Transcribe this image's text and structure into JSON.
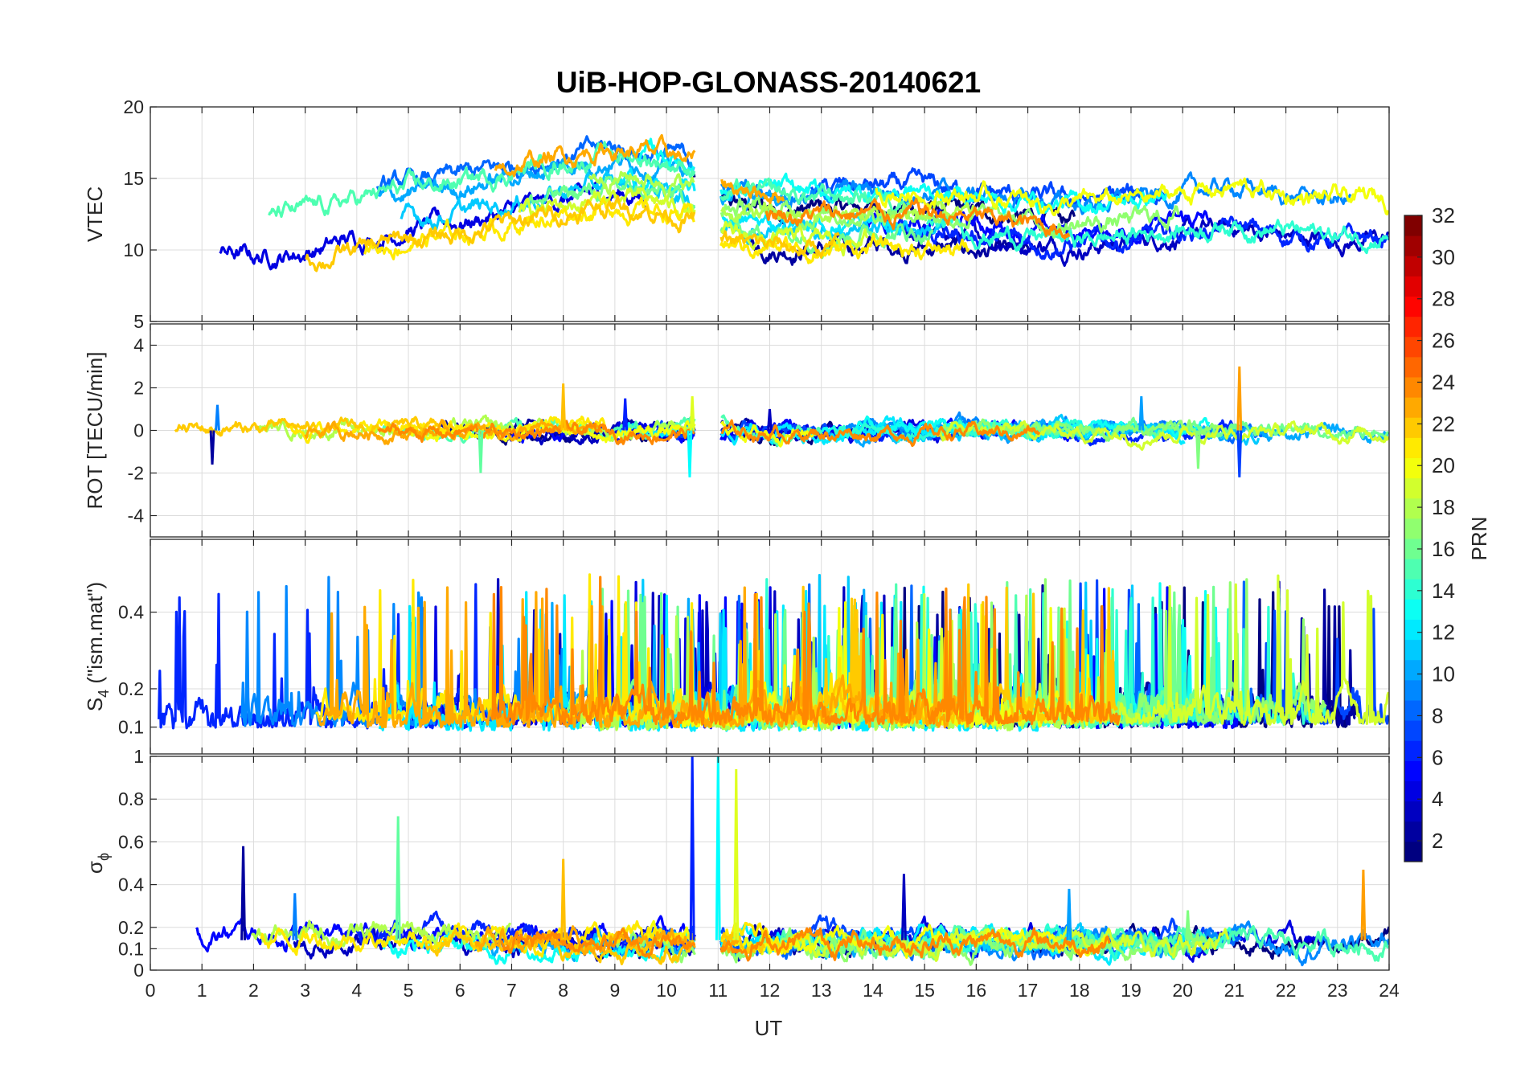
{
  "chart_data": {
    "type": "line",
    "title": "UiB-HOP-GLONASS-20140621",
    "xlabel": "UT",
    "xlim": [
      0,
      24
    ],
    "xticks": [
      "0",
      "1",
      "2",
      "3",
      "4",
      "5",
      "6",
      "7",
      "8",
      "9",
      "10",
      "11",
      "12",
      "13",
      "14",
      "15",
      "16",
      "17",
      "18",
      "19",
      "20",
      "21",
      "22",
      "23",
      "24"
    ],
    "panels": [
      {
        "id": "vtec",
        "ylabel": "VTEC",
        "ylim": [
          5,
          20
        ],
        "yticks": [
          "5",
          "10",
          "15",
          "20"
        ],
        "gaps": [
          [
            10.55,
            11.05
          ]
        ],
        "baseline": [
          [
            0,
            12.2
          ],
          [
            1,
            11.3
          ],
          [
            2,
            10.8
          ],
          [
            3,
            11.2
          ],
          [
            4,
            12.1
          ],
          [
            5,
            12.8
          ],
          [
            6,
            13.3
          ],
          [
            7,
            14.0
          ],
          [
            8,
            14.8
          ],
          [
            9,
            15.3
          ],
          [
            10,
            14.8
          ],
          [
            10.5,
            14.4
          ],
          [
            11.05,
            12.6
          ],
          [
            12,
            12.3
          ],
          [
            13,
            12.2
          ],
          [
            14,
            12.4
          ],
          [
            15,
            12.3
          ],
          [
            16,
            12.0
          ],
          [
            17,
            11.6
          ],
          [
            18,
            11.4
          ],
          [
            19,
            11.7
          ],
          [
            20,
            12.2
          ],
          [
            21,
            12.6
          ],
          [
            22,
            12.0
          ],
          [
            23,
            11.7
          ],
          [
            24,
            11.8
          ]
        ],
        "spread": 2.2,
        "noise": 0.7
      },
      {
        "id": "rot",
        "ylabel": "ROT [TECU/min]",
        "ylim": [
          -5,
          5
        ],
        "yticks": [
          "-4",
          "-2",
          "0",
          "2",
          "4"
        ],
        "gaps": [
          [
            10.55,
            11.05
          ]
        ],
        "baseline": [
          [
            0,
            0
          ],
          [
            24,
            0
          ]
        ],
        "spread": 0.1,
        "noise": 0.35,
        "spikes": [
          [
            1.2,
            -1.6
          ],
          [
            1.3,
            1.2
          ],
          [
            6.4,
            -2.0
          ],
          [
            8.0,
            2.2
          ],
          [
            9.2,
            1.5
          ],
          [
            10.45,
            -2.2
          ],
          [
            10.5,
            1.6
          ],
          [
            12.0,
            1.0
          ],
          [
            19.2,
            1.6
          ],
          [
            20.3,
            -1.8
          ],
          [
            21.1,
            3.0
          ],
          [
            21.1,
            -2.2
          ]
        ]
      },
      {
        "id": "s4",
        "ylabel": "S4 (\"ism.mat\")",
        "ylabel_main": "S",
        "ylabel_sub": "4",
        "ylabel_rest": " (\"ism.mat\")",
        "ylim": [
          0.03,
          0.59
        ],
        "yticks": [
          "0.1",
          "0.2",
          "0.4"
        ],
        "ytick_values": [
          0.1,
          0.2,
          0.4
        ],
        "gaps": [],
        "baseline": [
          [
            0,
            0.09
          ],
          [
            24,
            0.09
          ]
        ],
        "spread": 0.03,
        "noise": 0.06,
        "bursty": true
      },
      {
        "id": "sigphi",
        "ylabel": "σϕ",
        "ylabel_main": "σ",
        "ylabel_sub": "ϕ",
        "ylim": [
          0,
          1
        ],
        "yticks": [
          "0",
          "0.1",
          "0.2",
          "0.4",
          "0.6",
          "0.8",
          "1"
        ],
        "ytick_values": [
          0,
          0.1,
          0.2,
          0.4,
          0.6,
          0.8,
          1
        ],
        "gaps": [
          [
            10.55,
            11.05
          ]
        ],
        "baseline": [
          [
            0,
            0.14
          ],
          [
            24,
            0.14
          ]
        ],
        "spread": 0.03,
        "noise": 0.05,
        "spikes": [
          [
            1.8,
            0.58
          ],
          [
            2.8,
            0.36
          ],
          [
            4.8,
            0.72
          ],
          [
            8.0,
            0.52
          ],
          [
            10.5,
            1.0
          ],
          [
            11.0,
            1.0
          ],
          [
            11.35,
            0.94
          ],
          [
            14.6,
            0.45
          ],
          [
            17.8,
            0.38
          ],
          [
            20.1,
            0.28
          ],
          [
            23.5,
            0.47
          ]
        ]
      }
    ],
    "colorbar": {
      "label": "PRN",
      "range": [
        1,
        32
      ],
      "ticks": [
        "2",
        "4",
        "6",
        "8",
        "10",
        "12",
        "14",
        "16",
        "18",
        "20",
        "22",
        "24",
        "26",
        "28",
        "30",
        "32"
      ],
      "colormap": "jet"
    },
    "series_prn": [
      1,
      2,
      3,
      4,
      5,
      6,
      7,
      8,
      9,
      10,
      11,
      12,
      13,
      14,
      15,
      16,
      17,
      18,
      19,
      20,
      21,
      22,
      23,
      24
    ]
  },
  "colors": {
    "axis": "#262626",
    "grid": "#dcdcdc",
    "background": "#ffffff"
  }
}
